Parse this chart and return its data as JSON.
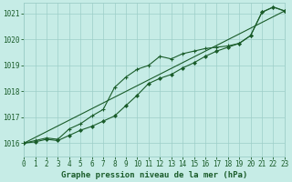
{
  "title": "Graphe pression niveau de la mer (hPa)",
  "background_color": "#c6ece6",
  "grid_color": "#9dcec8",
  "line_color": "#1a5c2a",
  "x_min": 0,
  "x_max": 23,
  "y_min": 1015.5,
  "y_max": 1021.4,
  "y_ticks": [
    1016,
    1017,
    1018,
    1019,
    1020,
    1021
  ],
  "x_ticks": [
    0,
    1,
    2,
    3,
    4,
    5,
    6,
    7,
    8,
    9,
    10,
    11,
    12,
    13,
    14,
    15,
    16,
    17,
    18,
    19,
    20,
    21,
    22,
    23
  ],
  "series1_markers": [
    [
      0,
      1016.0
    ],
    [
      1,
      1016.1
    ],
    [
      2,
      1016.2
    ],
    [
      3,
      1016.15
    ],
    [
      4,
      1016.55
    ],
    [
      5,
      1016.75
    ],
    [
      6,
      1017.05
    ],
    [
      7,
      1017.3
    ],
    [
      8,
      1018.15
    ],
    [
      9,
      1018.55
    ],
    [
      10,
      1018.85
    ],
    [
      11,
      1019.0
    ],
    [
      12,
      1019.35
    ],
    [
      13,
      1019.25
    ],
    [
      14,
      1019.45
    ],
    [
      15,
      1019.55
    ],
    [
      16,
      1019.65
    ],
    [
      17,
      1019.7
    ],
    [
      18,
      1019.75
    ],
    [
      19,
      1019.85
    ],
    [
      20,
      1020.15
    ],
    [
      21,
      1021.05
    ],
    [
      22,
      1021.25
    ],
    [
      23,
      1021.1
    ]
  ],
  "series2_smooth": [
    [
      0,
      1016.0
    ],
    [
      1,
      1016.05
    ],
    [
      2,
      1016.15
    ],
    [
      3,
      1016.1
    ],
    [
      4,
      1016.3
    ],
    [
      5,
      1016.5
    ],
    [
      6,
      1016.65
    ],
    [
      7,
      1016.85
    ],
    [
      8,
      1017.05
    ],
    [
      9,
      1017.45
    ],
    [
      10,
      1017.85
    ],
    [
      11,
      1018.3
    ],
    [
      12,
      1018.5
    ],
    [
      13,
      1018.65
    ],
    [
      14,
      1018.9
    ],
    [
      15,
      1019.1
    ],
    [
      16,
      1019.35
    ],
    [
      17,
      1019.55
    ],
    [
      18,
      1019.7
    ],
    [
      19,
      1019.85
    ],
    [
      20,
      1020.15
    ],
    [
      21,
      1021.05
    ],
    [
      22,
      1021.25
    ],
    [
      23,
      1021.1
    ]
  ],
  "series3_straight": [
    [
      0,
      1016.0
    ],
    [
      23,
      1021.1
    ]
  ],
  "tick_fontsize": 5.5,
  "label_fontsize": 6.5
}
